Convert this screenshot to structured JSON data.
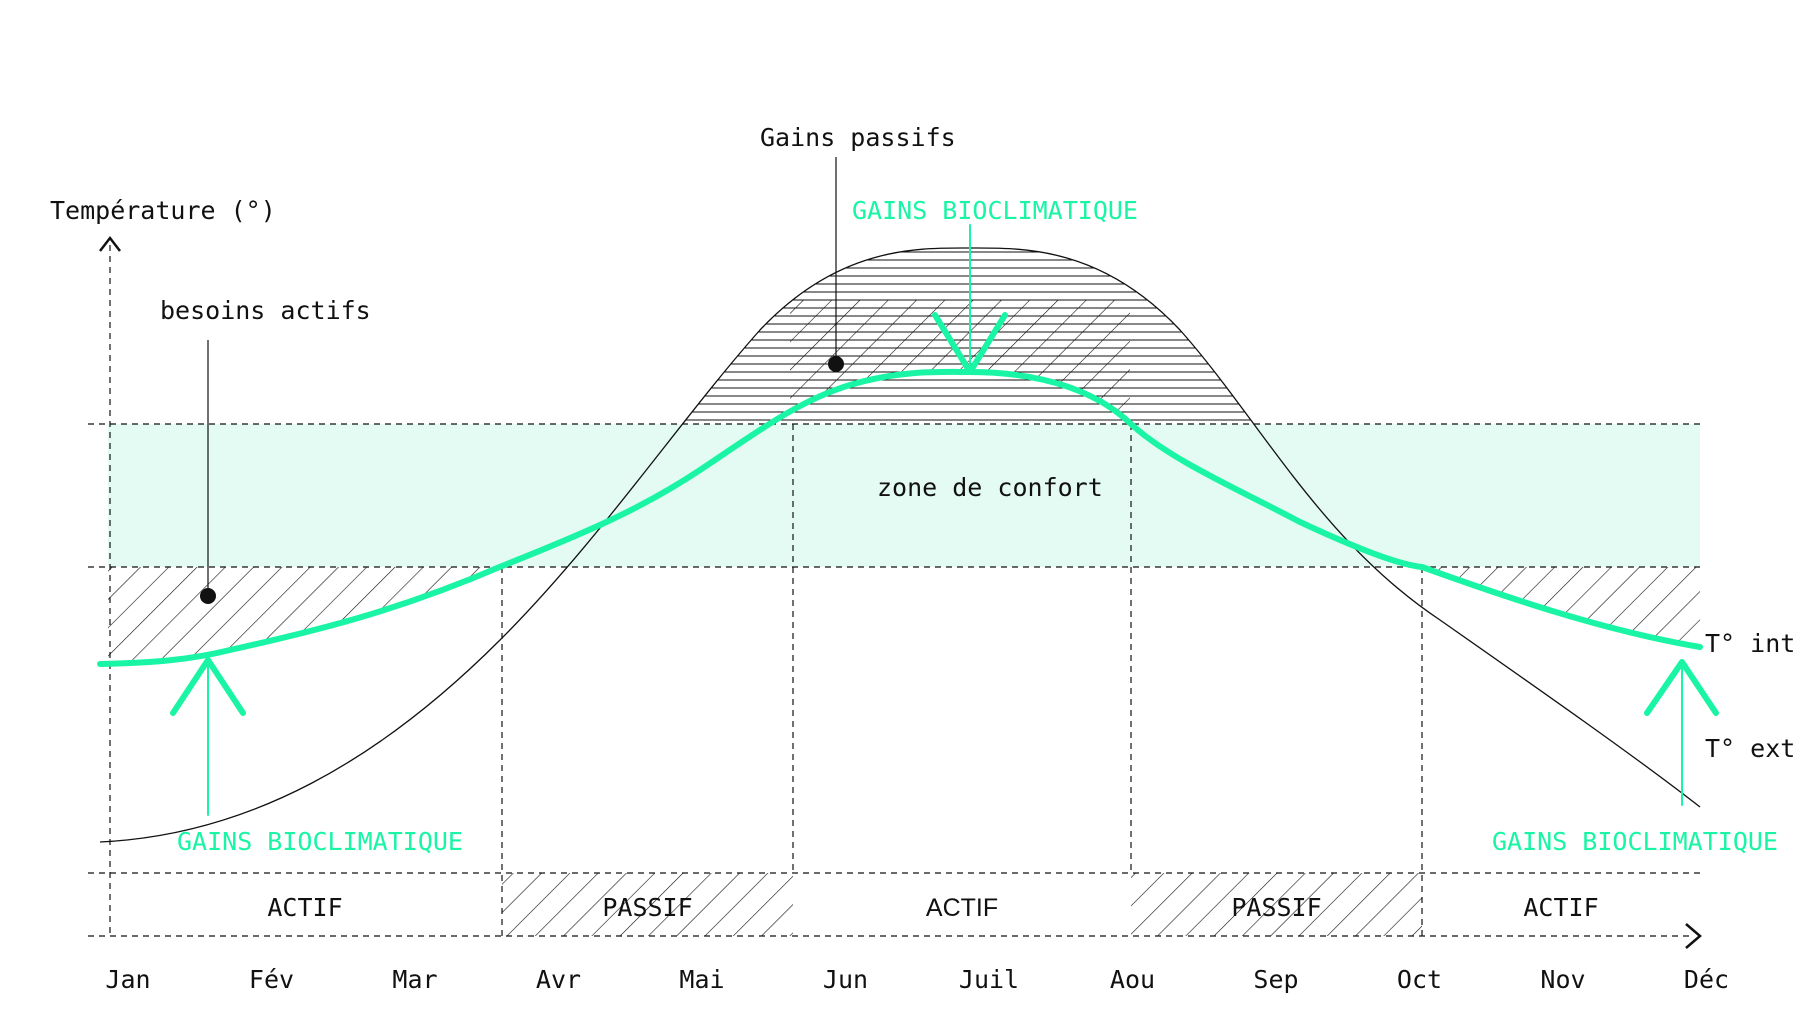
{
  "colors": {
    "accent": "#19f5a4",
    "comfort_fill": "#e3fbf2",
    "ink": "#111111"
  },
  "axis": {
    "y_label": "Température (°)",
    "months": [
      "Jan",
      "Fév",
      "Mar",
      "Avr",
      "Mai",
      "Jun",
      "Juil",
      "Aou",
      "Sep",
      "Oct",
      "Nov",
      "Déc"
    ]
  },
  "labels": {
    "gains_passifs": "Gains passifs",
    "besoins_actifs": "besoins actifs",
    "zone_confort": "zone de confort",
    "t_int": "T° int",
    "t_ext": "T° ext",
    "gains_bioclimatique_top": "GAINS BIOCLIMATIQUE",
    "gains_bioclimatique_left": "GAINS BIOCLIMATIQUE",
    "gains_bioclimatique_right": "GAINS BIOCLIMATIQUE"
  },
  "bands": [
    {
      "label": "ACTIF",
      "hatched": false
    },
    {
      "label": "PASSIF",
      "hatched": true
    },
    {
      "label": "ACTIF",
      "hatched": false
    },
    {
      "label": "PASSIF",
      "hatched": true
    },
    {
      "label": "ACTIF",
      "hatched": false
    }
  ]
}
